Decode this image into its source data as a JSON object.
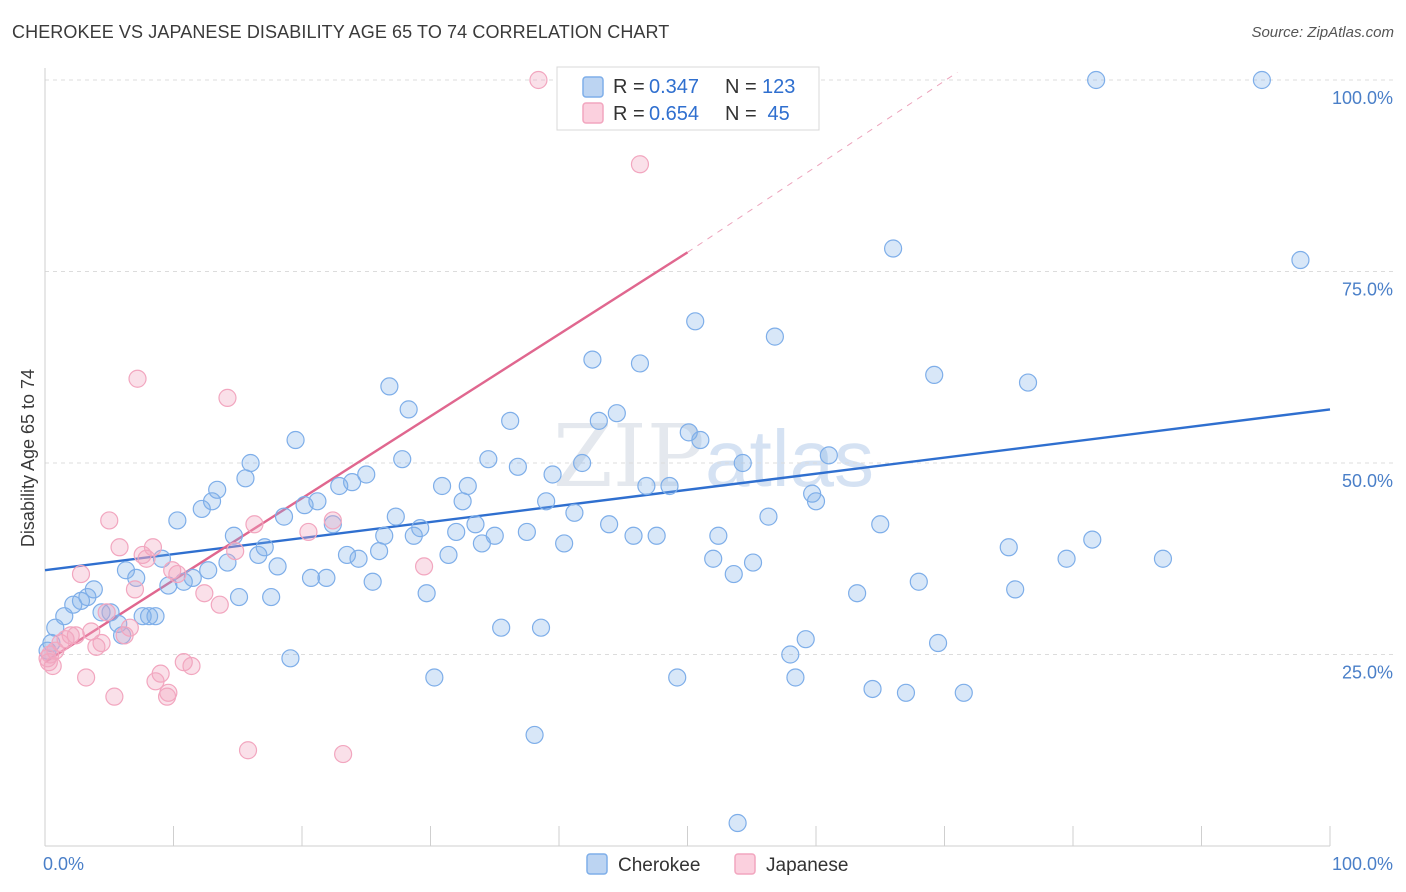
{
  "title": "CHEROKEE VS JAPANESE DISABILITY AGE 65 TO 74 CORRELATION CHART",
  "source": "Source: ZipAtlas.com",
  "watermark": {
    "zip": "ZIP",
    "atlas": "atlas"
  },
  "legend": {
    "rows": [
      {
        "r_label": "R = ",
        "r_value": "0.347",
        "n_label": "N = ",
        "n_value": "123",
        "color": "#7eaee9"
      },
      {
        "r_label": "R = ",
        "r_value": "0.654",
        "n_label": "N = ",
        "n_value": " 45",
        "color": "#f2a6bf"
      }
    ]
  },
  "bottom_legend": [
    {
      "label": "Cherokee",
      "color": "#7eaee9"
    },
    {
      "label": "Japanese",
      "color": "#f2a6bf"
    }
  ],
  "chart_data": {
    "type": "scatter",
    "title": "CHEROKEE VS JAPANESE DISABILITY AGE 65 TO 74 CORRELATION CHART",
    "xlabel": "",
    "ylabel": "Disability Age 65 to 74",
    "xlim": [
      0,
      100
    ],
    "ylim": [
      0,
      100
    ],
    "x_tick_labels": [
      "0.0%",
      "100.0%"
    ],
    "y_tick_labels": [
      "25.0%",
      "50.0%",
      "75.0%",
      "100.0%"
    ],
    "y_ticks": [
      25,
      50,
      75,
      100
    ],
    "grid": true,
    "legend_position": "top-center",
    "series": [
      {
        "name": "Cherokee",
        "color": "#7eaee9",
        "line_color": "#2f6fcf",
        "R": 0.347,
        "N": 123,
        "trend": {
          "x": [
            0,
            100
          ],
          "y": [
            36.0,
            57.0
          ]
        },
        "points": [
          [
            0.2,
            25.5
          ],
          [
            0.5,
            26.5
          ],
          [
            0.8,
            28.5
          ],
          [
            1.5,
            30.0
          ],
          [
            2.2,
            31.5
          ],
          [
            2.8,
            32.0
          ],
          [
            3.3,
            32.5
          ],
          [
            3.8,
            33.5
          ],
          [
            4.4,
            30.5
          ],
          [
            5.1,
            30.5
          ],
          [
            5.7,
            29.0
          ],
          [
            6.0,
            27.5
          ],
          [
            6.3,
            36.0
          ],
          [
            7.1,
            35.0
          ],
          [
            7.6,
            30.0
          ],
          [
            8.1,
            30.0
          ],
          [
            8.6,
            30.0
          ],
          [
            9.1,
            37.5
          ],
          [
            9.6,
            34.0
          ],
          [
            10.3,
            42.5
          ],
          [
            10.8,
            34.5
          ],
          [
            11.5,
            35.0
          ],
          [
            12.2,
            44.0
          ],
          [
            12.7,
            36.0
          ],
          [
            13.0,
            45.0
          ],
          [
            13.4,
            46.5
          ],
          [
            14.2,
            37.0
          ],
          [
            14.7,
            40.5
          ],
          [
            15.1,
            32.5
          ],
          [
            15.6,
            48.0
          ],
          [
            16.0,
            50.0
          ],
          [
            16.6,
            38.0
          ],
          [
            17.1,
            39.0
          ],
          [
            17.6,
            32.5
          ],
          [
            18.1,
            36.5
          ],
          [
            18.6,
            43.0
          ],
          [
            19.1,
            24.5
          ],
          [
            19.5,
            53.0
          ],
          [
            20.2,
            44.5
          ],
          [
            20.7,
            35.0
          ],
          [
            21.2,
            45.0
          ],
          [
            21.9,
            35.0
          ],
          [
            22.4,
            42.0
          ],
          [
            22.9,
            47.0
          ],
          [
            23.5,
            38.0
          ],
          [
            23.9,
            47.5
          ],
          [
            24.4,
            37.5
          ],
          [
            25.0,
            48.5
          ],
          [
            25.5,
            34.5
          ],
          [
            26.0,
            38.5
          ],
          [
            26.4,
            40.5
          ],
          [
            26.8,
            60.0
          ],
          [
            27.3,
            43.0
          ],
          [
            27.8,
            50.5
          ],
          [
            28.3,
            57.0
          ],
          [
            28.7,
            40.5
          ],
          [
            29.2,
            41.5
          ],
          [
            29.7,
            33.0
          ],
          [
            30.3,
            22.0
          ],
          [
            30.9,
            47.0
          ],
          [
            31.4,
            38.0
          ],
          [
            32.0,
            41.0
          ],
          [
            32.5,
            45.0
          ],
          [
            32.9,
            47.0
          ],
          [
            33.5,
            42.0
          ],
          [
            34.0,
            39.5
          ],
          [
            34.5,
            50.5
          ],
          [
            35.0,
            40.5
          ],
          [
            35.5,
            28.5
          ],
          [
            36.2,
            55.5
          ],
          [
            36.8,
            49.5
          ],
          [
            37.5,
            41.0
          ],
          [
            38.1,
            14.5
          ],
          [
            38.6,
            28.5
          ],
          [
            39.0,
            45.0
          ],
          [
            39.5,
            48.5
          ],
          [
            40.4,
            39.5
          ],
          [
            41.2,
            43.5
          ],
          [
            41.8,
            50.0
          ],
          [
            42.6,
            63.5
          ],
          [
            43.1,
            55.5
          ],
          [
            43.9,
            42.0
          ],
          [
            44.5,
            56.5
          ],
          [
            45.8,
            40.5
          ],
          [
            46.3,
            63.0
          ],
          [
            46.8,
            47.0
          ],
          [
            47.6,
            40.5
          ],
          [
            48.6,
            47.0
          ],
          [
            49.2,
            22.0
          ],
          [
            50.1,
            54.0
          ],
          [
            50.6,
            68.5
          ],
          [
            51.0,
            53.0
          ],
          [
            52.0,
            37.5
          ],
          [
            52.4,
            40.5
          ],
          [
            53.6,
            35.5
          ],
          [
            53.9,
            3.0
          ],
          [
            54.3,
            50.0
          ],
          [
            55.1,
            37.0
          ],
          [
            56.3,
            43.0
          ],
          [
            56.8,
            66.5
          ],
          [
            58.0,
            25.0
          ],
          [
            58.4,
            22.0
          ],
          [
            59.2,
            27.0
          ],
          [
            59.7,
            46.0
          ],
          [
            60.0,
            45.0
          ],
          [
            61.0,
            51.0
          ],
          [
            63.2,
            33.0
          ],
          [
            64.4,
            20.5
          ],
          [
            65.0,
            42.0
          ],
          [
            66.0,
            78.0
          ],
          [
            67.0,
            20.0
          ],
          [
            68.0,
            34.5
          ],
          [
            69.2,
            61.5
          ],
          [
            69.5,
            26.5
          ],
          [
            71.5,
            20.0
          ],
          [
            75.0,
            39.0
          ],
          [
            75.5,
            33.5
          ],
          [
            76.5,
            60.5
          ],
          [
            79.5,
            37.5
          ],
          [
            81.5,
            40.0
          ],
          [
            81.8,
            100.0
          ],
          [
            87.0,
            37.5
          ],
          [
            94.7,
            100.0
          ],
          [
            97.7,
            76.5
          ]
        ]
      },
      {
        "name": "Japanese",
        "color": "#f2a6bf",
        "line_color": "#e0678f",
        "R": 0.654,
        "N": 45,
        "trend": {
          "x": [
            0,
            50
          ],
          "y": [
            24.0,
            77.5
          ]
        },
        "trend_extension": {
          "x": [
            50,
            71
          ],
          "y": [
            77.5,
            101.0
          ]
        },
        "points": [
          [
            0.2,
            24.5
          ],
          [
            0.4,
            25.0
          ],
          [
            0.6,
            23.5
          ],
          [
            0.8,
            25.5
          ],
          [
            1.2,
            26.5
          ],
          [
            1.6,
            27.0
          ],
          [
            2.0,
            27.5
          ],
          [
            2.4,
            27.5
          ],
          [
            2.8,
            35.5
          ],
          [
            3.2,
            22.0
          ],
          [
            3.6,
            28.0
          ],
          [
            4.0,
            26.0
          ],
          [
            4.4,
            26.5
          ],
          [
            4.8,
            30.5
          ],
          [
            5.0,
            42.5
          ],
          [
            5.4,
            19.5
          ],
          [
            5.8,
            39.0
          ],
          [
            6.2,
            27.5
          ],
          [
            6.6,
            28.5
          ],
          [
            7.0,
            33.5
          ],
          [
            7.2,
            61.0
          ],
          [
            7.6,
            38.0
          ],
          [
            7.9,
            37.5
          ],
          [
            8.4,
            39.0
          ],
          [
            8.6,
            21.5
          ],
          [
            9.0,
            22.5
          ],
          [
            9.5,
            19.5
          ],
          [
            9.6,
            20.0
          ],
          [
            9.9,
            36.0
          ],
          [
            10.3,
            35.5
          ],
          [
            10.8,
            24.0
          ],
          [
            11.4,
            23.5
          ],
          [
            12.4,
            33.0
          ],
          [
            13.6,
            31.5
          ],
          [
            14.2,
            58.5
          ],
          [
            14.8,
            38.5
          ],
          [
            15.8,
            12.5
          ],
          [
            16.3,
            42.0
          ],
          [
            20.5,
            41.0
          ],
          [
            22.4,
            42.5
          ],
          [
            23.2,
            12.0
          ],
          [
            29.5,
            36.5
          ],
          [
            38.4,
            100.0
          ],
          [
            46.3,
            89.0
          ],
          [
            0.3,
            24.0
          ]
        ]
      }
    ]
  }
}
